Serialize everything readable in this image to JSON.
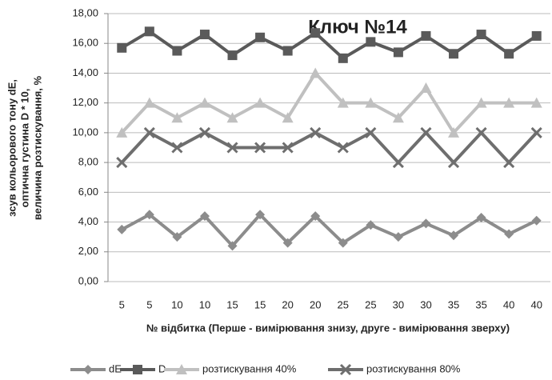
{
  "chart_data": {
    "type": "line",
    "title": "Ключ №14",
    "y_label": [
      "зсув кольорового  тону dE,",
      "оптична густина D * 10,",
      "величина розтискування,  %"
    ],
    "x_label": "№ відбитка  (Перше - вимірювання  знизу, друге - вимірювання  зверху)",
    "categories": [
      "5",
      "5",
      "10",
      "10",
      "15",
      "15",
      "20",
      "20",
      "25",
      "25",
      "30",
      "30",
      "35",
      "35",
      "40",
      "40"
    ],
    "series": [
      {
        "name": "dE",
        "color": "#8c8c8c",
        "marker": "diamond",
        "values": [
          3.5,
          4.5,
          3.0,
          4.4,
          2.4,
          4.5,
          2.6,
          4.4,
          2.6,
          3.8,
          3.0,
          3.9,
          3.1,
          4.3,
          3.2,
          4.1
        ]
      },
      {
        "name": "D",
        "color": "#5a5a5a",
        "marker": "square",
        "values": [
          15.7,
          16.8,
          15.5,
          16.6,
          15.2,
          16.4,
          15.5,
          16.7,
          15.0,
          16.1,
          15.4,
          16.5,
          15.3,
          16.6,
          15.3,
          16.5
        ]
      },
      {
        "name": "розтискування 40%",
        "color": "#c0c0c0",
        "marker": "triangle",
        "values": [
          10,
          12,
          11,
          12,
          11,
          12,
          11,
          14,
          12,
          12,
          11,
          13,
          10,
          12,
          12,
          12
        ]
      },
      {
        "name": "розтискування 80%",
        "color": "#6e6e6e",
        "marker": "x",
        "values": [
          8,
          10,
          9,
          10,
          9,
          9,
          9,
          10,
          9,
          10,
          8,
          10,
          8,
          10,
          8,
          10
        ]
      }
    ],
    "ylim": [
      0,
      18
    ],
    "yticks": [
      {
        "value": 0,
        "label": "0,00"
      },
      {
        "value": 2,
        "label": "2,00"
      },
      {
        "value": 4,
        "label": "4,00"
      },
      {
        "value": 6,
        "label": "6,00"
      },
      {
        "value": 8,
        "label": "8,00"
      },
      {
        "value": 10,
        "label": "10,00"
      },
      {
        "value": 12,
        "label": "12,00"
      },
      {
        "value": 14,
        "label": "14,00"
      },
      {
        "value": 16,
        "label": "16,00"
      },
      {
        "value": 18,
        "label": "18,00"
      }
    ],
    "grid": true
  }
}
